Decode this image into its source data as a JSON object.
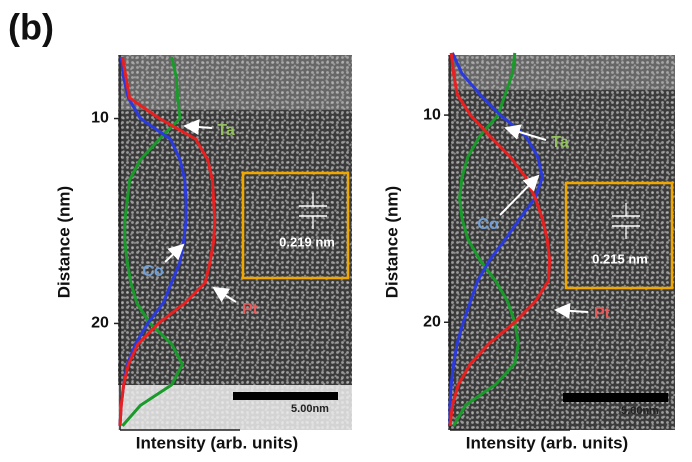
{
  "label": "(b)",
  "chart_data": [
    {
      "type": "line",
      "orientation": "vertical",
      "x_axis_label": "Distance (nm)",
      "y_axis_label": "Intensity (arb. units)",
      "x": [
        7,
        8,
        9,
        10,
        11,
        12,
        13,
        14,
        15,
        16,
        17,
        18,
        19,
        20,
        21,
        22,
        23,
        24,
        25
      ],
      "xlim": [
        6.9,
        25.2
      ],
      "xticks": [
        10,
        20
      ],
      "ylim": [
        0,
        1
      ],
      "series": [
        {
          "name": "Ta",
          "color": "#1a9a2a",
          "values": [
            0.43,
            0.47,
            0.48,
            0.5,
            0.33,
            0.17,
            0.08,
            0.06,
            0.04,
            0.04,
            0.06,
            0.09,
            0.14,
            0.25,
            0.43,
            0.52,
            0.43,
            0.17,
            0.02
          ]
        },
        {
          "name": "Co",
          "color": "#2a3adc",
          "values": [
            0.01,
            0.03,
            0.07,
            0.17,
            0.42,
            0.5,
            0.54,
            0.55,
            0.55,
            0.53,
            0.5,
            0.43,
            0.36,
            0.23,
            0.13,
            0.06,
            0.03,
            0.01,
            0
          ]
        },
        {
          "name": "Pt",
          "color": "#e82020",
          "values": [
            0.02,
            0.05,
            0.08,
            0.33,
            0.63,
            0.73,
            0.77,
            0.78,
            0.79,
            0.78,
            0.75,
            0.71,
            0.54,
            0.32,
            0.15,
            0.07,
            0.03,
            0.01,
            0
          ]
        }
      ],
      "lattice_spacing": "0.219 nm",
      "scale_bar": "5.00nm"
    },
    {
      "type": "line",
      "orientation": "vertical",
      "x_axis_label": "Distance (nm)",
      "y_axis_label": "Intensity (arb. units)",
      "x": [
        7,
        8,
        9,
        10,
        11,
        12,
        13,
        14,
        15,
        16,
        17,
        18,
        19,
        20,
        21,
        22,
        23,
        24,
        25
      ],
      "xlim": [
        7.1,
        25.2
      ],
      "xticks": [
        10,
        20
      ],
      "ylim": [
        0,
        1
      ],
      "series": [
        {
          "name": "Ta",
          "color": "#1a9a2a",
          "values": [
            0.54,
            0.52,
            0.46,
            0.4,
            0.25,
            0.15,
            0.1,
            0.08,
            0.1,
            0.15,
            0.25,
            0.38,
            0.48,
            0.54,
            0.57,
            0.54,
            0.38,
            0.13,
            0.03
          ]
        },
        {
          "name": "Co",
          "color": "#2a3adc",
          "values": [
            0.02,
            0.1,
            0.25,
            0.42,
            0.63,
            0.73,
            0.77,
            0.71,
            0.58,
            0.46,
            0.33,
            0.23,
            0.17,
            0.11,
            0.06,
            0.03,
            0.01,
            0,
            0
          ]
        },
        {
          "name": "Pt",
          "color": "#e82020",
          "values": [
            0.01,
            0.03,
            0.06,
            0.17,
            0.33,
            0.5,
            0.63,
            0.71,
            0.77,
            0.81,
            0.83,
            0.82,
            0.71,
            0.54,
            0.33,
            0.17,
            0.07,
            0.02,
            0
          ]
        }
      ],
      "lattice_spacing": "0.215 nm",
      "scale_bar": "5.00nm"
    }
  ]
}
